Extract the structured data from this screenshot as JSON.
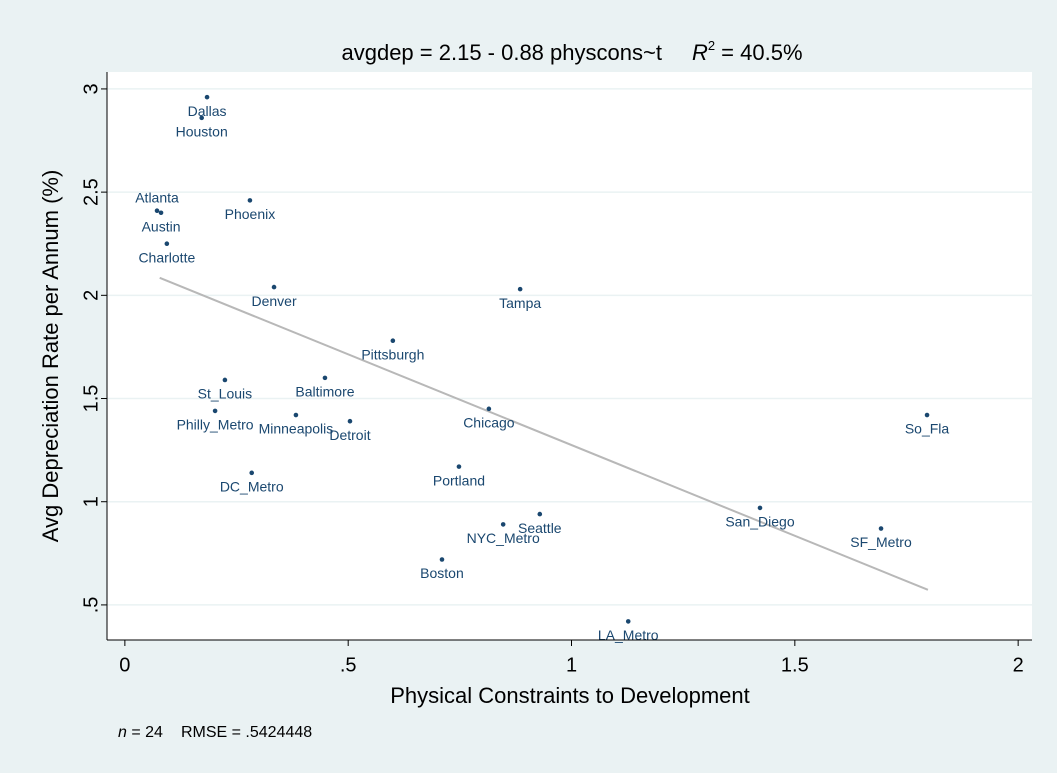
{
  "chart_data": {
    "type": "scatter",
    "title": "avgdep = 2.15 - 0.88 physcons~t",
    "r2": {
      "symbol": "R",
      "sup": "2",
      "text": " = 40.5%"
    },
    "x_label": "Physical Constraints to Development",
    "y_label": "Avg Depreciation Rate per Annum (%)",
    "note": {
      "n_symbol": "n",
      "n_text": " = 24",
      "rmse": "RMSE = .5424448"
    },
    "xlim": [
      -0.04,
      2.031
    ],
    "ylim": [
      0.33,
      3.082
    ],
    "xticks": [
      0,
      {
        "value": 0.5,
        "label": ".5"
      },
      1,
      1.5,
      2
    ],
    "yticks": [
      {
        "value": 0.5,
        "label": ".5"
      },
      1,
      1.5,
      2,
      2.5,
      3
    ],
    "grid": true,
    "series": [
      {
        "color": "#1a476f",
        "labels": [
          "Dallas",
          "Houston",
          "Atlanta",
          "Austin",
          "Phoenix",
          "Charlotte",
          "Denver",
          "Tampa",
          "Pittsburgh",
          "Baltimore",
          "St_Louis",
          "Philly_Metro",
          "Minneapolis",
          "Detroit",
          "Chicago",
          "So_Fla",
          "Portland",
          "DC_Metro",
          "Seattle",
          "NYC_Metro",
          "San_Diego",
          "SF_Metro",
          "Boston",
          "LA_Metro"
        ],
        "x": [
          0.184,
          0.172,
          0.072,
          0.081,
          0.28,
          0.094,
          0.334,
          0.885,
          0.6,
          0.448,
          0.224,
          0.202,
          0.383,
          0.504,
          0.815,
          1.796,
          0.748,
          0.284,
          0.929,
          0.847,
          1.422,
          1.693,
          0.71,
          1.127
        ],
        "values": [
          2.96,
          2.86,
          2.41,
          2.4,
          2.46,
          2.25,
          2.04,
          2.03,
          1.78,
          1.6,
          1.59,
          1.44,
          1.42,
          1.39,
          1.45,
          1.42,
          1.17,
          1.14,
          0.94,
          0.89,
          0.97,
          0.87,
          0.72,
          0.42
        ]
      }
    ],
    "fit_line": {
      "color": "#b8b8b8",
      "x": [
        0.078,
        1.798
      ],
      "values": [
        2.085,
        0.573
      ]
    }
  }
}
